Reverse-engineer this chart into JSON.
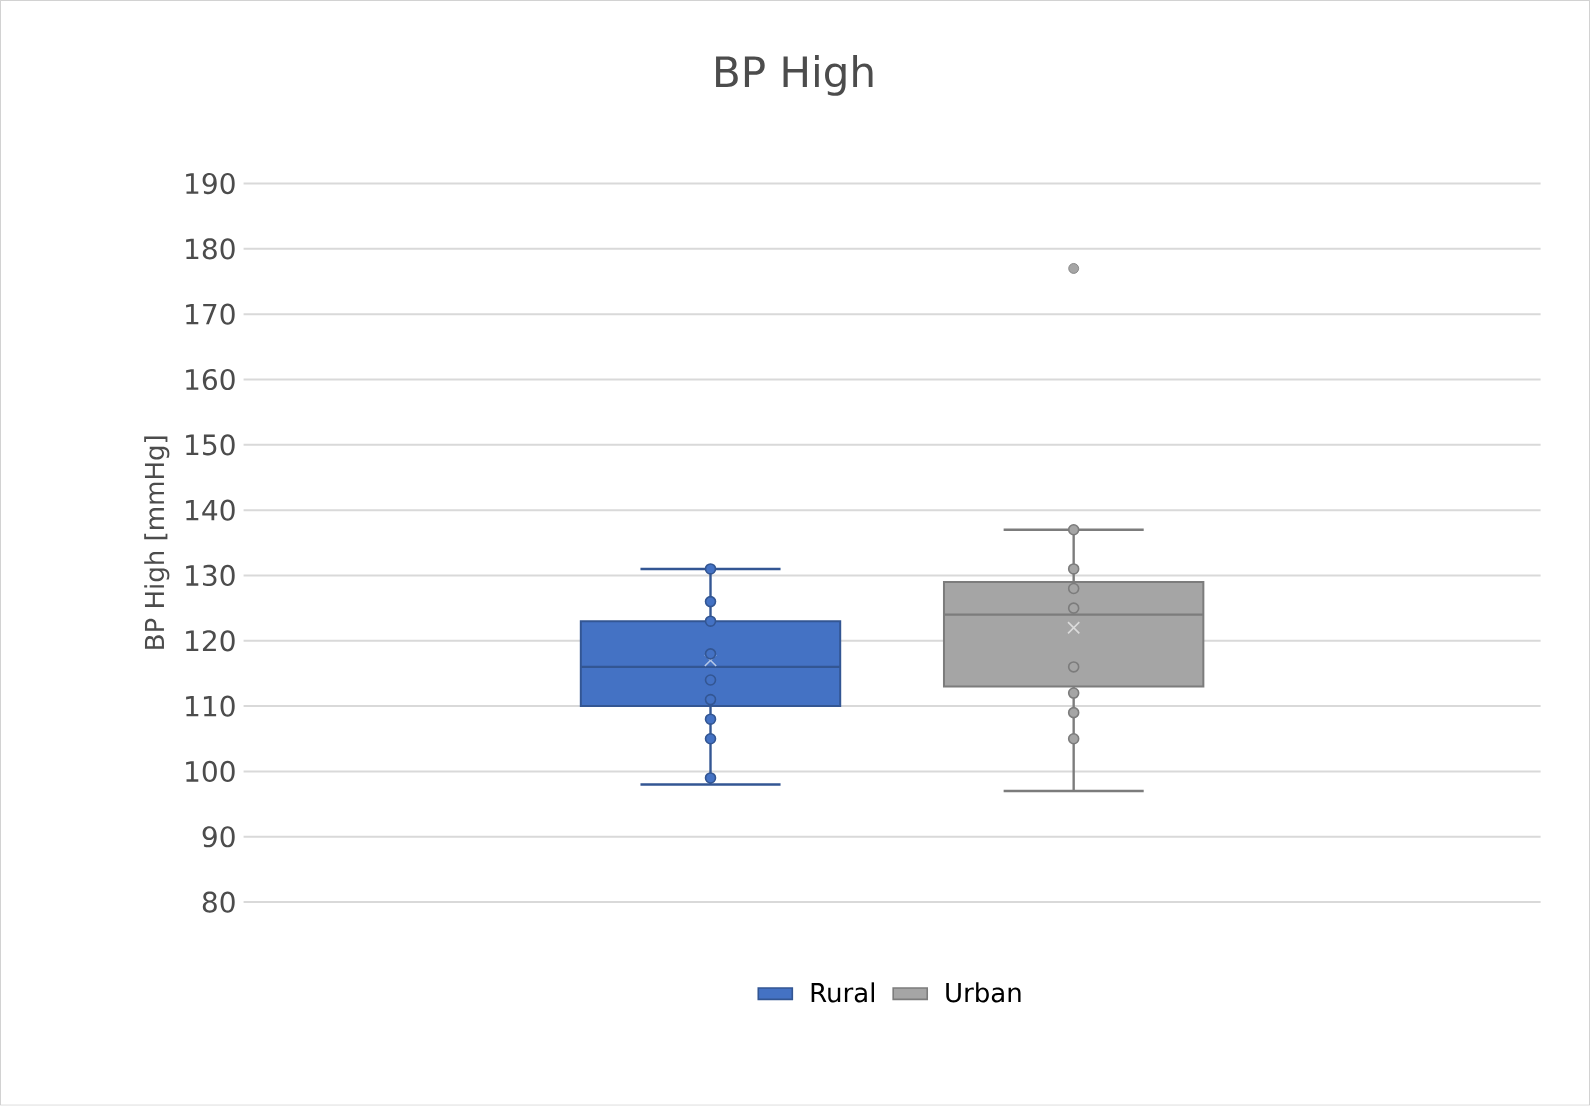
{
  "chart_data": {
    "type": "box",
    "title": "BP High",
    "ylabel": "BP High [mmHg]",
    "categories": [
      null
    ],
    "series": [
      {
        "name": "Rural",
        "color": "#4472c4",
        "boxes": [
          {
            "low": 98,
            "q1": 110,
            "median": 116,
            "q3": 123,
            "high": 131,
            "mean": 117
          }
        ]
      },
      {
        "name": "Urban",
        "color": "#a5a5a5",
        "boxes": [
          {
            "low": 97,
            "q1": 113,
            "median": 124,
            "q3": 129,
            "high": 137,
            "mean": 122,
            "outliers": [
              177
            ]
          }
        ]
      },
      {
        "type": "scatter",
        "color": "#4472c4",
        "x": [
          null,
          null,
          null,
          null,
          null,
          null,
          null,
          null,
          null
        ],
        "values": [
          131,
          126,
          123,
          118,
          114,
          111,
          108,
          105,
          99
        ]
      },
      {
        "type": "scatter",
        "color": "#a5a5a5",
        "x": [
          null,
          null,
          null,
          null,
          null,
          null,
          null,
          null
        ],
        "values": [
          137,
          131,
          128,
          125,
          116,
          112,
          109,
          105
        ]
      }
    ],
    "ylim": [
      80,
      190
    ],
    "yticks": [
      80,
      90,
      100,
      110,
      120,
      130,
      140,
      150,
      160,
      170,
      180,
      190
    ],
    "grid": "y",
    "legend": "bottom"
  }
}
